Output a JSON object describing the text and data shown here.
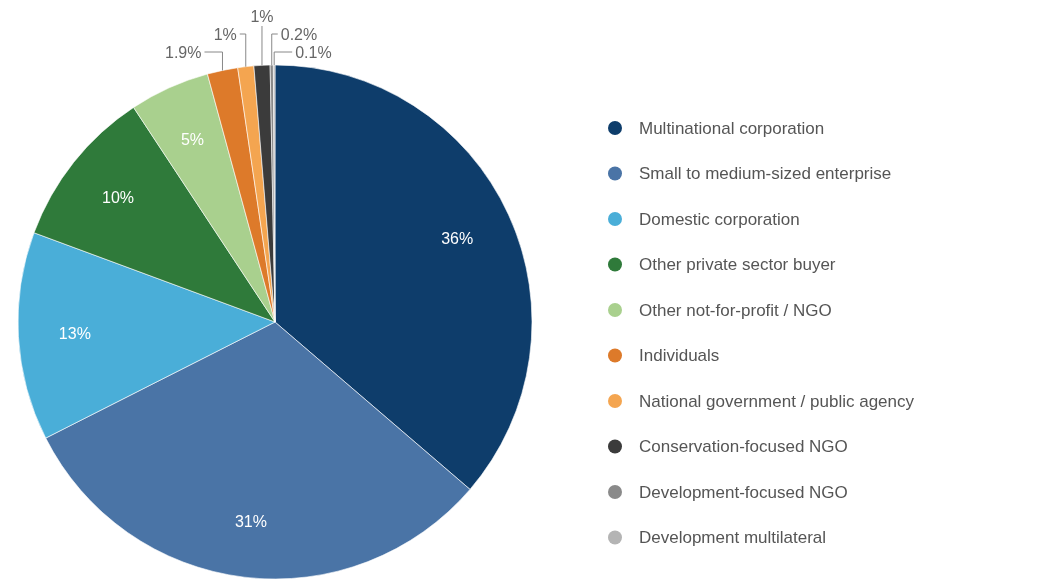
{
  "chart_data": {
    "type": "pie",
    "categories": [
      "Multinational corporation",
      "Small to medium-sized enterprise",
      "Domestic corporation",
      "Other private sector buyer",
      "Other not-for-profit / NGO",
      "Individuals",
      "National government / public agency",
      "Conservation-focused NGO",
      "Development-focused NGO",
      "Development multilateral"
    ],
    "values": [
      36,
      31,
      13,
      10,
      5,
      1.9,
      1,
      1,
      0.2,
      0.1
    ],
    "colors": [
      "#0e3d6b",
      "#4a74a6",
      "#4aaed8",
      "#2f7a3a",
      "#a9d08e",
      "#dd7a2a",
      "#f4a550",
      "#3b3b3b",
      "#8a8a8a",
      "#b4b4b4"
    ],
    "value_labels": [
      "36%",
      "31%",
      "13%",
      "10%",
      "5%",
      "1.9%",
      "1%",
      "1%",
      "0.2%",
      "0.1%"
    ],
    "legend": "right"
  }
}
